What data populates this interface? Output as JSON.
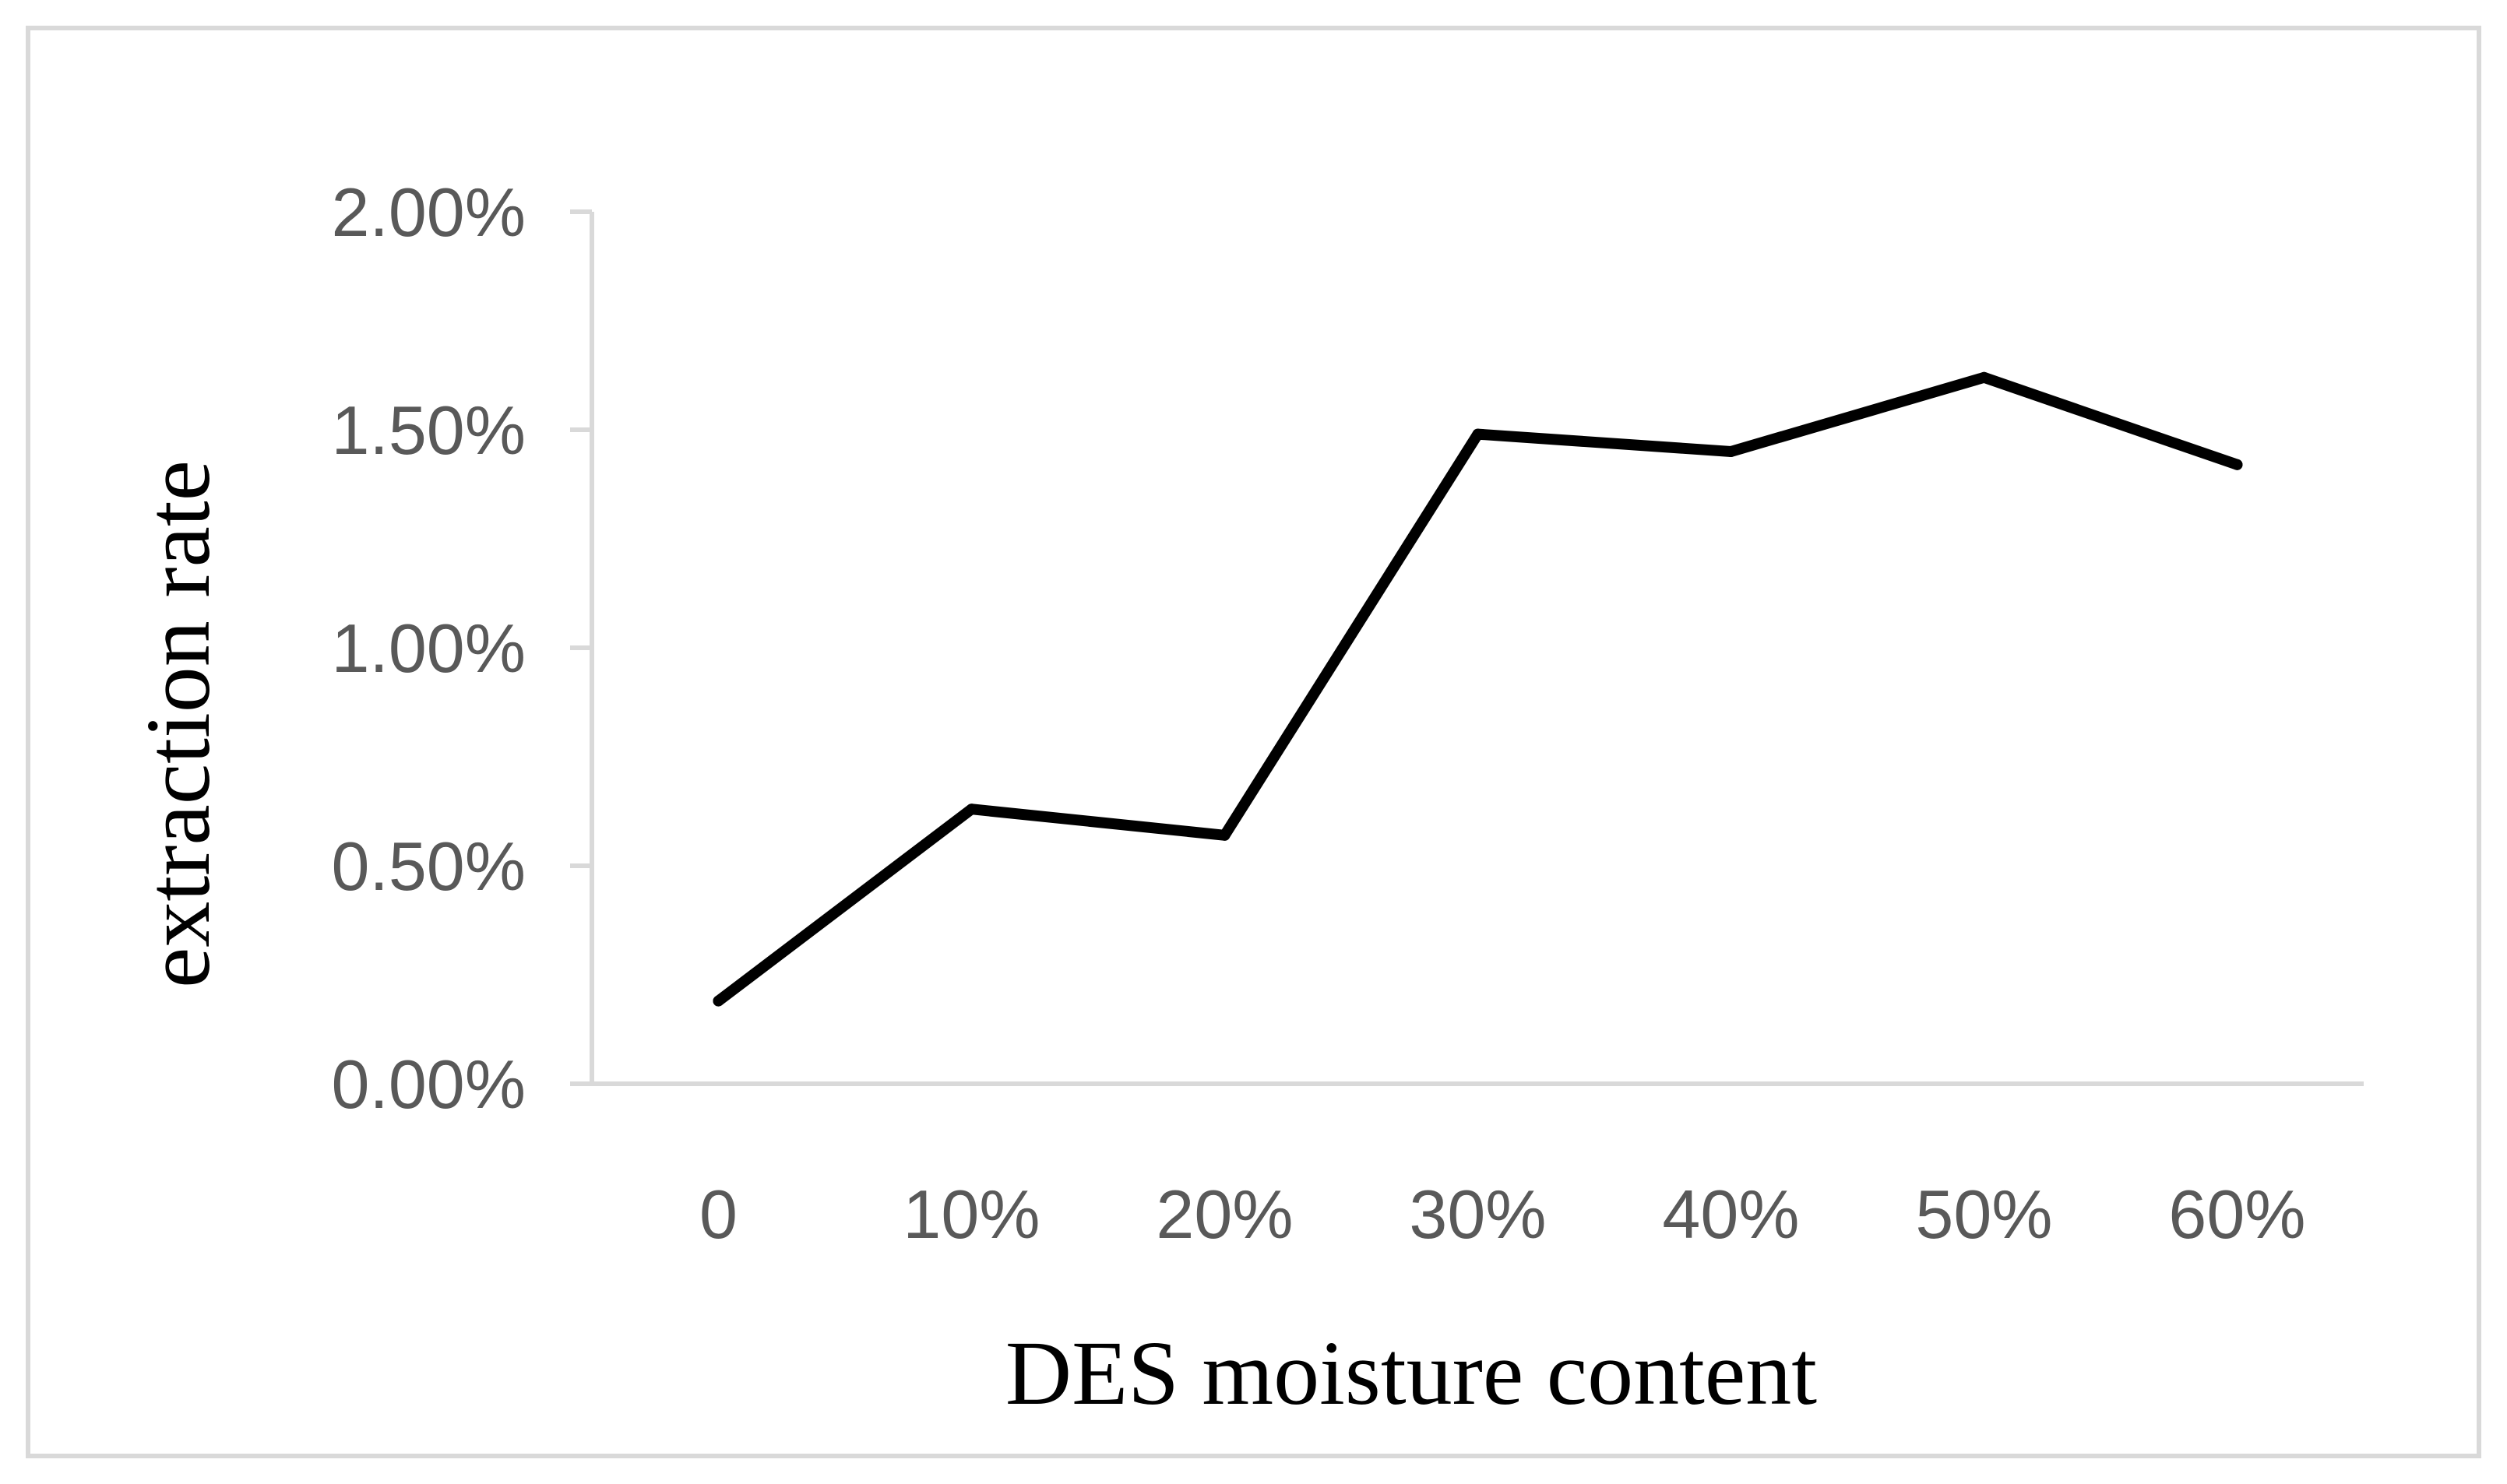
{
  "chart_data": {
    "type": "line",
    "title": "",
    "xlabel": "DES moisture content",
    "ylabel": "extraction rate",
    "categories": [
      "0",
      "10%",
      "20%",
      "30%",
      "40%",
      "50%",
      "60%"
    ],
    "series": [
      {
        "values": [
          0.19,
          0.63,
          0.57,
          1.49,
          1.45,
          1.62,
          1.42
        ]
      }
    ],
    "y_unit": "%",
    "ylim": [
      0,
      2
    ],
    "yticks": [
      0,
      0.5,
      1.0,
      1.5,
      2.0
    ],
    "ytick_labels": [
      "0.00%",
      "0.50%",
      "1.00%",
      "1.50%",
      "2.00%"
    ],
    "grid": false,
    "legend": "none",
    "colors": {
      "line": "#000000",
      "axis": "#d9d9d9",
      "tick_text": "#595959",
      "frame": "#d9d9d9"
    }
  }
}
